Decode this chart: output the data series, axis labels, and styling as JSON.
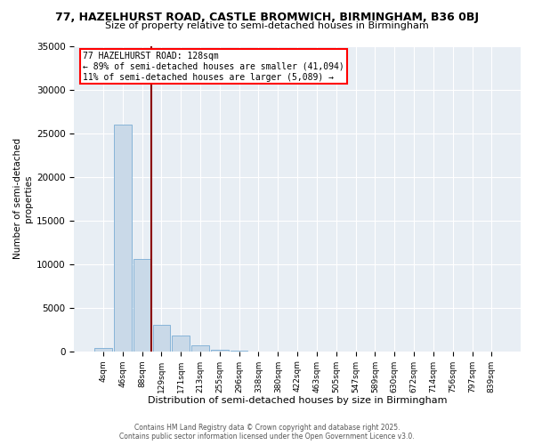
{
  "title1": "77, HAZELHURST ROAD, CASTLE BROMWICH, BIRMINGHAM, B36 0BJ",
  "title2": "Size of property relative to semi-detached houses in Birmingham",
  "xlabel": "Distribution of semi-detached houses by size in Birmingham",
  "ylabel": "Number of semi-detached\nproperties",
  "categories": [
    "4sqm",
    "46sqm",
    "88sqm",
    "129sqm",
    "171sqm",
    "213sqm",
    "255sqm",
    "296sqm",
    "338sqm",
    "380sqm",
    "422sqm",
    "463sqm",
    "505sqm",
    "547sqm",
    "589sqm",
    "630sqm",
    "672sqm",
    "714sqm",
    "756sqm",
    "797sqm",
    "839sqm"
  ],
  "values": [
    400,
    26000,
    10600,
    3000,
    1800,
    700,
    150,
    40,
    10,
    5,
    2,
    1,
    0,
    0,
    0,
    0,
    0,
    0,
    0,
    0,
    0
  ],
  "bar_color": "#c9d9e8",
  "bar_edge_color": "#7aadd4",
  "vline_color": "#8b0000",
  "annotation_box_text": "77 HAZELHURST ROAD: 128sqm\n← 89% of semi-detached houses are smaller (41,094)\n11% of semi-detached houses are larger (5,089) →",
  "ylim": [
    0,
    35000
  ],
  "yticks": [
    0,
    5000,
    10000,
    15000,
    20000,
    25000,
    30000,
    35000
  ],
  "bg_color": "#e8eef4",
  "grid_color": "#ffffff",
  "footer1": "Contains HM Land Registry data © Crown copyright and database right 2025.",
  "footer2": "Contains public sector information licensed under the Open Government Licence v3.0.",
  "title1_fontsize": 9,
  "title2_fontsize": 8,
  "xlabel_fontsize": 8,
  "ylabel_fontsize": 7.5
}
